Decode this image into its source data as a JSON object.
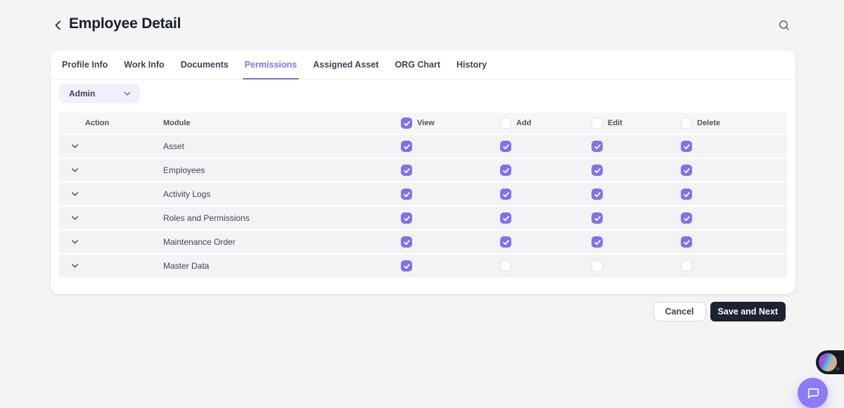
{
  "page": {
    "title": "Employee Detail"
  },
  "tabs": [
    {
      "label": "Profile Info",
      "active": false
    },
    {
      "label": "Work Info",
      "active": false
    },
    {
      "label": "Documents",
      "active": false
    },
    {
      "label": "Permissions",
      "active": true
    },
    {
      "label": "Assigned Asset",
      "active": false
    },
    {
      "label": "ORG Chart",
      "active": false
    },
    {
      "label": "History",
      "active": false
    }
  ],
  "role_dropdown": {
    "value": "Admin"
  },
  "table": {
    "action_header": "Action",
    "module_header": "Module",
    "perm_columns": [
      {
        "label": "View",
        "checked": true
      },
      {
        "label": "Add",
        "checked": false
      },
      {
        "label": "Edit",
        "checked": false
      },
      {
        "label": "Delete",
        "checked": false
      }
    ],
    "rows": [
      {
        "module": "Asset",
        "permissions": {
          "view": true,
          "add": true,
          "edit": true,
          "delete": true
        }
      },
      {
        "module": "Employees",
        "permissions": {
          "view": true,
          "add": true,
          "edit": true,
          "delete": true
        }
      },
      {
        "module": "Activity Logs",
        "permissions": {
          "view": true,
          "add": true,
          "edit": true,
          "delete": true
        }
      },
      {
        "module": "Roles and Permissions",
        "permissions": {
          "view": true,
          "add": true,
          "edit": true,
          "delete": true
        }
      },
      {
        "module": "Maintenance Order",
        "permissions": {
          "view": true,
          "add": true,
          "edit": true,
          "delete": true
        }
      },
      {
        "module": "Master Data",
        "permissions": {
          "view": true,
          "add": false,
          "edit": false,
          "delete": false
        }
      }
    ]
  },
  "footer": {
    "cancel_label": "Cancel",
    "save_label": "Save and Next"
  },
  "icons": {
    "header_left": "chevron-left-icon",
    "header_right": "search-icon",
    "dropdown": "chevron-down-icon",
    "row_expander": "chevron-down-icon",
    "floating": "chat-bubble-icon"
  },
  "colors": {
    "accent": "#8273F1",
    "checkbox_checked": "#8170F0",
    "active_tab_underline": "#7C6AF0",
    "dark_button": "#1C2333",
    "page_background": "#F4F4F5",
    "row_background": "#F3F3F6",
    "dropdown_background": "#F1EFFC",
    "chat_button": "#8B7BF5"
  }
}
